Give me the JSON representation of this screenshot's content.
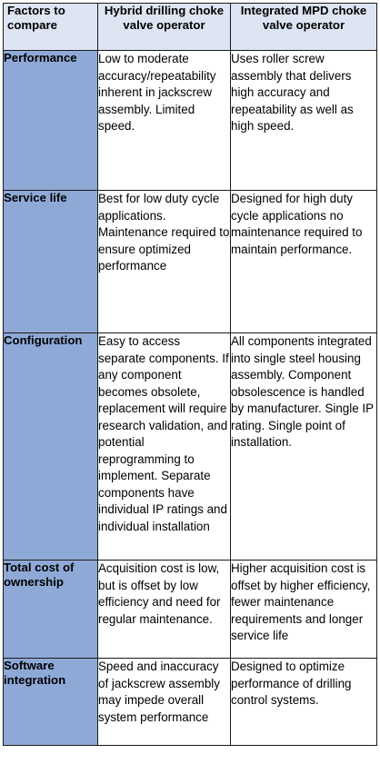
{
  "table": {
    "headers": {
      "factor": "Factors to compare",
      "hybrid": "Hybrid drilling choke valve operator",
      "mpd": "Integrated MPD choke valve operator"
    },
    "rows": [
      {
        "factor": "Performance",
        "hybrid": "Low to moderate accuracy/repeatability inherent in jackscrew assembly. Limited speed.",
        "mpd": "Uses roller screw assembly that delivers high accuracy and repeatability as well as high speed."
      },
      {
        "factor": "Service life",
        "hybrid": "Best for low duty cycle applications. Maintenance required to ensure optimized performance",
        "mpd": "Designed for high duty cycle applications no maintenance required to maintain performance."
      },
      {
        "factor": "Configuration",
        "hybrid": "Easy to access separate components. If any component becomes obsolete, replacement will require research validation, and potential reprogramming to implement. Separate components have individual IP ratings and individual installation",
        "mpd": "All components integrated into single steel housing assembly. Component obsolescence is handled by manufacturer. Single IP rating. Single point of installation."
      },
      {
        "factor": "Total cost of ownership",
        "hybrid": "Acquisition cost is low, but is offset by low efficiency and need for regular maintenance.",
        "mpd": "Higher acquisition cost is offset by higher efficiency, fewer maintenance requirements and longer service life"
      },
      {
        "factor": "Software integration",
        "hybrid": "Speed and inaccuracy of jackscrew assembly may impede overall system performance",
        "mpd": "Designed to optimize performance of drilling control systems."
      }
    ]
  },
  "colors": {
    "header_bg": "#dde4f2",
    "factor_bg": "#8fa9d7",
    "border": "#1a1a1a"
  }
}
